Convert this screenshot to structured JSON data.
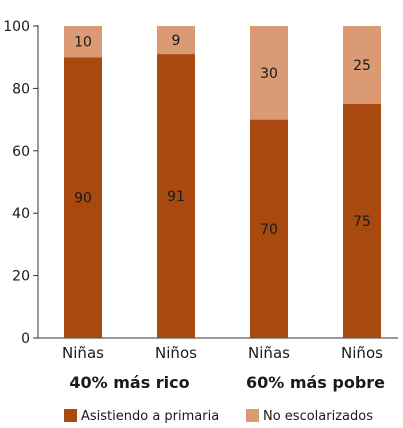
{
  "chart_data": {
    "type": "bar",
    "stacked": true,
    "categories": [
      "Niñas",
      "Niños",
      "Niñas",
      "Niños"
    ],
    "groups": [
      {
        "label": "40% más rico",
        "categories": [
          0,
          1
        ]
      },
      {
        "label": "60% más pobre",
        "categories": [
          2,
          3
        ]
      }
    ],
    "series": [
      {
        "name": "Asistiendo a primaria",
        "values": [
          90,
          91,
          70,
          75
        ],
        "color": "#A84A10"
      },
      {
        "name": "No escolarizados",
        "values": [
          10,
          9,
          30,
          25
        ],
        "color": "#D99A74"
      }
    ],
    "data_labels": [
      [
        "90",
        "91",
        "70",
        "75"
      ],
      [
        "10",
        "9",
        "30",
        "25"
      ]
    ],
    "ylim": [
      0,
      100
    ],
    "yticks": [
      0,
      20,
      40,
      60,
      80,
      100
    ],
    "legend_position": "bottom",
    "grid": false
  }
}
